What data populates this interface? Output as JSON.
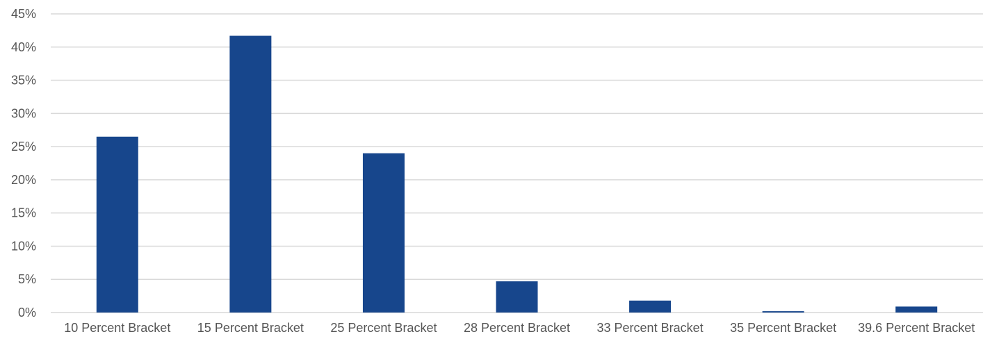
{
  "chart_data": {
    "type": "bar",
    "title": "",
    "xlabel": "",
    "ylabel": "",
    "categories": [
      "10 Percent Bracket",
      "15 Percent Bracket",
      "25 Percent Bracket",
      "28 Percent Bracket",
      "33 Percent Bracket",
      "35 Percent Bracket",
      "39.6 Percent Bracket"
    ],
    "values": [
      26.5,
      41.7,
      24.0,
      4.7,
      1.8,
      0.2,
      0.9
    ],
    "unit": "%",
    "ylim": [
      0,
      45
    ],
    "yticks": [
      0,
      5,
      10,
      15,
      20,
      25,
      30,
      35,
      40,
      45
    ],
    "ytick_labels": [
      "0%",
      "5%",
      "10%",
      "15%",
      "20%",
      "25%",
      "30%",
      "35%",
      "40%",
      "45%"
    ],
    "grid": true,
    "legend": "none",
    "bar_color": "#17468c",
    "grid_color": "#d9d9d9",
    "label_color": "#555555"
  }
}
